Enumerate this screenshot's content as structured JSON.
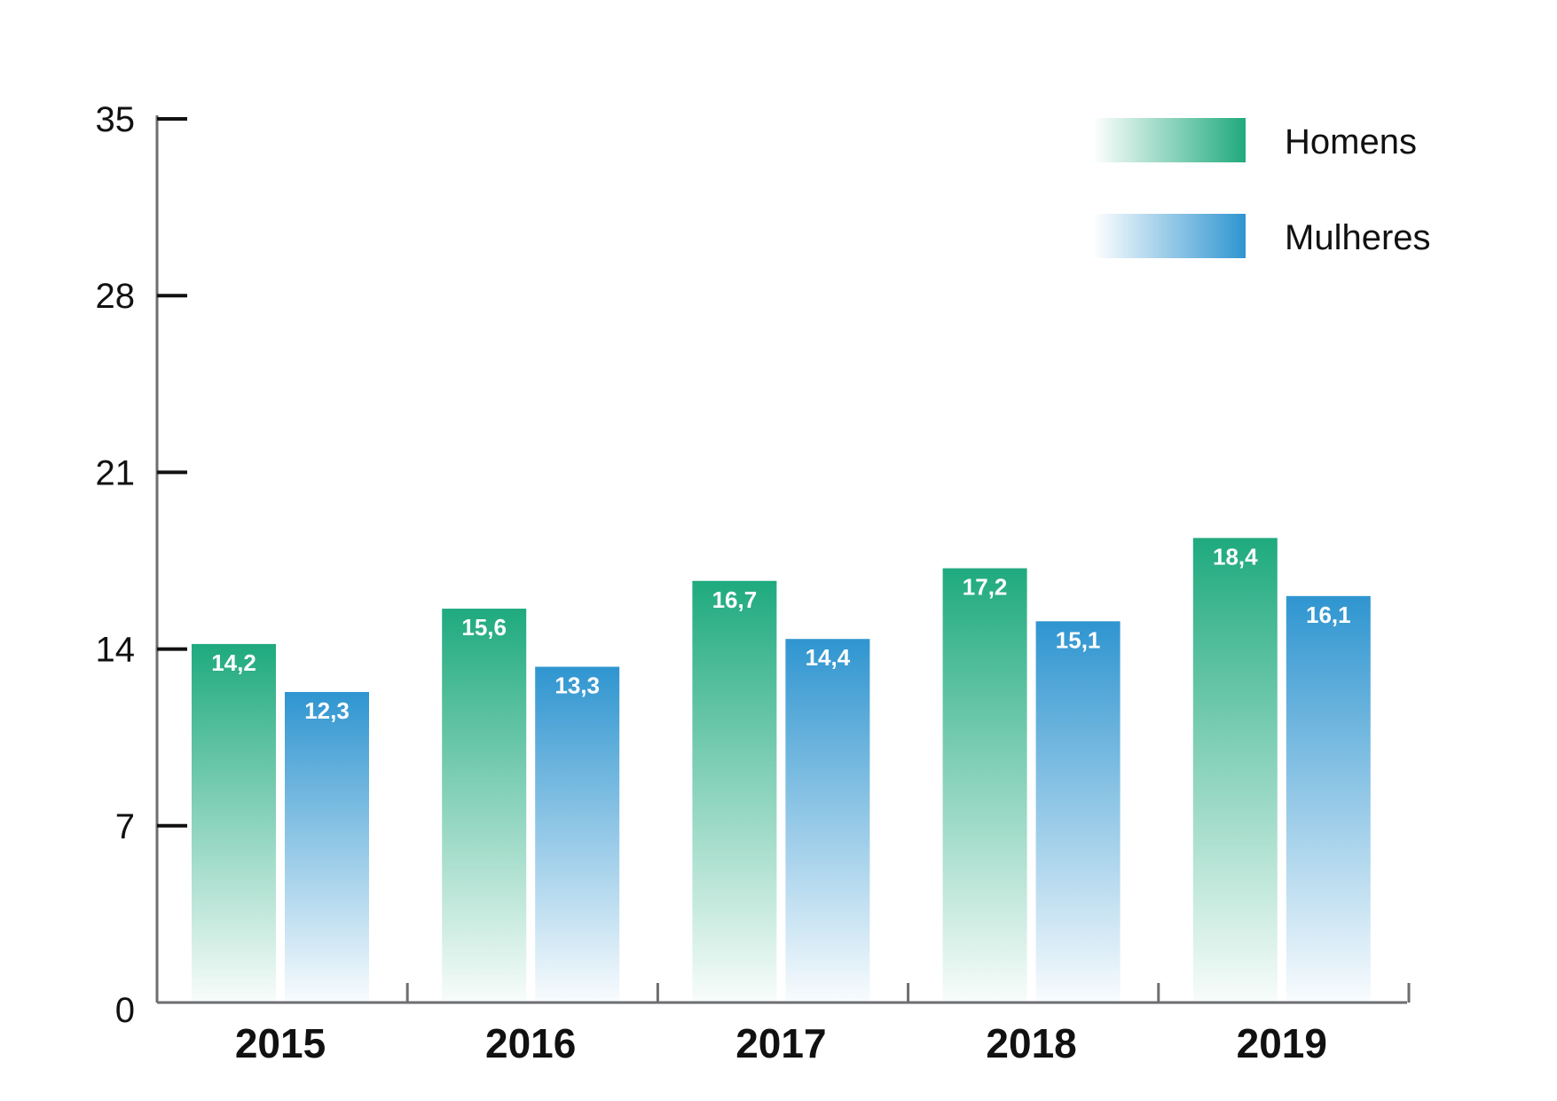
{
  "chart_data": {
    "type": "bar",
    "categories": [
      "2015",
      "2016",
      "2017",
      "2018",
      "2019"
    ],
    "series": [
      {
        "name": "Homens",
        "values": [
          14.2,
          15.6,
          16.7,
          17.2,
          18.4
        ],
        "labels": [
          "14,2",
          "15,6",
          "16,7",
          "17,2",
          "18,4"
        ],
        "color": "#1faa7e"
      },
      {
        "name": "Mulheres",
        "values": [
          12.3,
          13.3,
          14.4,
          15.1,
          16.1
        ],
        "labels": [
          "12,3",
          "13,3",
          "14,4",
          "15,1",
          "16,1"
        ],
        "color": "#2f95d0"
      }
    ],
    "yticks": [
      "0",
      "7",
      "14",
      "21",
      "28",
      "35"
    ],
    "ylim": [
      0,
      35
    ],
    "title": "",
    "xlabel": "",
    "ylabel": "",
    "grid": false,
    "legend_position": "top-right"
  }
}
